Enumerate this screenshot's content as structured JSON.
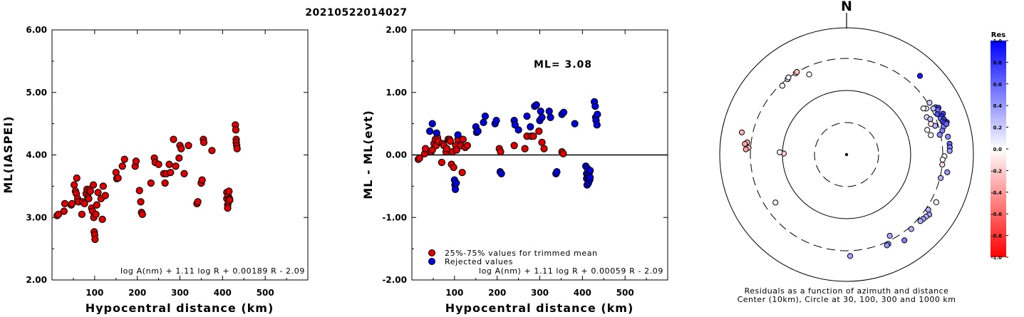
{
  "figure": {
    "title": "20210522014027"
  },
  "chart_data": [
    {
      "type": "scatter",
      "id": "ml-vs-distance",
      "xlabel": "Hypocentral distance (km)",
      "ylabel": "ML(IASPEI)",
      "xlim": [
        0,
        600
      ],
      "ylim": [
        2.0,
        6.0
      ],
      "xticks": [
        "100",
        "200",
        "300",
        "400",
        "500"
      ],
      "yticks": [
        "2.00",
        "3.00",
        "4.00",
        "5.00",
        "6.00"
      ],
      "formula": "log A(nm) + 1.11 log R + 0.00189 R - 2.09",
      "point_color": "#dd0000",
      "points": [
        [
          12,
          3.03
        ],
        [
          15,
          3.05
        ],
        [
          28,
          3.1
        ],
        [
          30,
          3.22
        ],
        [
          45,
          3.2
        ],
        [
          47,
          3.22
        ],
        [
          52,
          3.52
        ],
        [
          55,
          3.42
        ],
        [
          57,
          3.38
        ],
        [
          58,
          3.63
        ],
        [
          60,
          3.3
        ],
        [
          62,
          3.25
        ],
        [
          70,
          3.05
        ],
        [
          72,
          3.25
        ],
        [
          76,
          3.22
        ],
        [
          80,
          3.38
        ],
        [
          82,
          3.45
        ],
        [
          84,
          3.33
        ],
        [
          86,
          3.3
        ],
        [
          88,
          3.45
        ],
        [
          90,
          3.42
        ],
        [
          93,
          3.15
        ],
        [
          95,
          3.1
        ],
        [
          97,
          3.52
        ],
        [
          98,
          3.0
        ],
        [
          99,
          2.77
        ],
        [
          100,
          2.72
        ],
        [
          101,
          2.65
        ],
        [
          103,
          3.05
        ],
        [
          105,
          3.2
        ],
        [
          108,
          3.4
        ],
        [
          115,
          3.3
        ],
        [
          118,
          2.97
        ],
        [
          120,
          3.5
        ],
        [
          125,
          3.35
        ],
        [
          150,
          3.72
        ],
        [
          152,
          3.62
        ],
        [
          155,
          3.63
        ],
        [
          165,
          3.82
        ],
        [
          170,
          3.93
        ],
        [
          195,
          3.82
        ],
        [
          197,
          3.9
        ],
        [
          205,
          3.43
        ],
        [
          208,
          3.25
        ],
        [
          210,
          3.08
        ],
        [
          212,
          3.05
        ],
        [
          232,
          3.55
        ],
        [
          240,
          3.95
        ],
        [
          242,
          3.88
        ],
        [
          250,
          3.85
        ],
        [
          262,
          3.7
        ],
        [
          265,
          3.55
        ],
        [
          268,
          3.7
        ],
        [
          275,
          3.85
        ],
        [
          278,
          3.72
        ],
        [
          285,
          4.25
        ],
        [
          290,
          3.82
        ],
        [
          298,
          3.95
        ],
        [
          300,
          4.15
        ],
        [
          303,
          4.1
        ],
        [
          310,
          3.7
        ],
        [
          320,
          4.15
        ],
        [
          340,
          3.22
        ],
        [
          342,
          3.25
        ],
        [
          350,
          3.55
        ],
        [
          352,
          3.6
        ],
        [
          355,
          4.25
        ],
        [
          356,
          4.2
        ],
        [
          375,
          4.07
        ],
        [
          410,
          3.4
        ],
        [
          410,
          3.3
        ],
        [
          412,
          3.2
        ],
        [
          412,
          3.15
        ],
        [
          413,
          3.35
        ],
        [
          414,
          3.25
        ],
        [
          415,
          3.42
        ],
        [
          416,
          3.3
        ],
        [
          417,
          3.28
        ],
        [
          430,
          4.48
        ],
        [
          431,
          4.4
        ],
        [
          432,
          4.25
        ],
        [
          432,
          4.2
        ],
        [
          433,
          4.15
        ],
        [
          434,
          4.1
        ]
      ]
    },
    {
      "type": "scatter",
      "id": "residual-vs-distance",
      "xlabel": "Hypocentral distance (km)",
      "ylabel": "ML - ML(evt)",
      "xlim": [
        0,
        600
      ],
      "ylim": [
        -2.0,
        2.0
      ],
      "xticks": [
        "100",
        "200",
        "300",
        "400",
        "500"
      ],
      "yticks": [
        "-2.00",
        "-1.00",
        "0.00",
        "1.00",
        "2.00"
      ],
      "annotation": "ML= 3.08",
      "formula": "log A(nm) + 1.11 log R + 0.00059 R - 2.09",
      "reference_line": 0.0,
      "legend": [
        {
          "label": "25%-75% values for trimmed mean",
          "color": "#dd0000"
        },
        {
          "label": "Rejected values",
          "color": "#0000dd"
        }
      ],
      "series": [
        {
          "name": "25%-75% values for trimmed mean",
          "color": "#dd0000",
          "points": [
            [
              15,
              -0.07
            ],
            [
              18,
              -0.05
            ],
            [
              30,
              0.02
            ],
            [
              32,
              0.1
            ],
            [
              45,
              0.05
            ],
            [
              48,
              0.08
            ],
            [
              52,
              0.18
            ],
            [
              55,
              0.25
            ],
            [
              57,
              0.15
            ],
            [
              60,
              0.28
            ],
            [
              62,
              0.22
            ],
            [
              70,
              -0.12
            ],
            [
              72,
              0.18
            ],
            [
              75,
              0.15
            ],
            [
              80,
              0.05
            ],
            [
              82,
              0.1
            ],
            [
              85,
              0.25
            ],
            [
              88,
              0.25
            ],
            [
              90,
              0.22
            ],
            [
              93,
              -0.15
            ],
            [
              95,
              0.05
            ],
            [
              98,
              -0.2
            ],
            [
              103,
              0.15
            ],
            [
              105,
              0.08
            ],
            [
              108,
              0.25
            ],
            [
              115,
              0.15
            ],
            [
              118,
              -0.28
            ],
            [
              120,
              0.25
            ],
            [
              125,
              0.12
            ],
            [
              130,
              0.15
            ],
            [
              205,
              0.1
            ],
            [
              208,
              0.05
            ],
            [
              240,
              0.15
            ],
            [
              265,
              0.1
            ],
            [
              270,
              0.3
            ],
            [
              280,
              0.3
            ],
            [
              285,
              0.3
            ],
            [
              298,
              0.38
            ],
            [
              305,
              0.2
            ],
            [
              310,
              0.1
            ],
            [
              352,
              0.05
            ],
            [
              355,
              0.02
            ]
          ]
        },
        {
          "name": "Rejected values",
          "color": "#0000dd",
          "points": [
            [
              42,
              0.38
            ],
            [
              48,
              0.5
            ],
            [
              58,
              0.35
            ],
            [
              100,
              -0.4
            ],
            [
              101,
              -0.48
            ],
            [
              102,
              -0.55
            ],
            [
              104,
              -0.45
            ],
            [
              108,
              0.32
            ],
            [
              150,
              0.45
            ],
            [
              152,
              0.36
            ],
            [
              155,
              0.38
            ],
            [
              168,
              0.52
            ],
            [
              172,
              0.62
            ],
            [
              195,
              0.5
            ],
            [
              198,
              0.55
            ],
            [
              207,
              -0.27
            ],
            [
              210,
              -0.3
            ],
            [
              240,
              0.55
            ],
            [
              242,
              0.48
            ],
            [
              250,
              0.4
            ],
            [
              270,
              0.62
            ],
            [
              278,
              0.45
            ],
            [
              288,
              0.78
            ],
            [
              292,
              0.8
            ],
            [
              300,
              0.55
            ],
            [
              302,
              0.7
            ],
            [
              305,
              0.6
            ],
            [
              322,
              0.7
            ],
            [
              325,
              0.6
            ],
            [
              338,
              -0.3
            ],
            [
              340,
              -0.27
            ],
            [
              352,
              0.65
            ],
            [
              356,
              0.68
            ],
            [
              382,
              0.5
            ],
            [
              408,
              -0.18
            ],
            [
              410,
              -0.3
            ],
            [
              410,
              -0.38
            ],
            [
              411,
              -0.48
            ],
            [
              412,
              -0.22
            ],
            [
              413,
              -0.35
            ],
            [
              414,
              -0.45
            ],
            [
              415,
              -0.32
            ],
            [
              416,
              -0.28
            ],
            [
              417,
              -0.4
            ],
            [
              418,
              -0.25
            ],
            [
              418,
              -0.36
            ],
            [
              428,
              0.85
            ],
            [
              430,
              0.78
            ],
            [
              431,
              0.6
            ],
            [
              432,
              0.55
            ],
            [
              434,
              0.48
            ],
            [
              435,
              0.65
            ]
          ]
        }
      ]
    },
    {
      "type": "scatter",
      "id": "residual-polar",
      "north_label": "N",
      "caption_1": "Residuals as a function of azimuth and distance",
      "caption_2": "Center (10km), Circle at 30, 100, 300 and 1000 km",
      "rings_km": [
        30,
        100,
        300,
        1000
      ],
      "colorbar": {
        "title": "Res",
        "ticks": [
          "1.0",
          "0.8",
          "0.6",
          "0.4",
          "0.2",
          "0.0",
          "-0.2",
          "-0.4",
          "-0.6",
          "-0.8",
          "-1.0"
        ],
        "min": -1.0,
        "max": 1.0,
        "low_color": "#ff0000",
        "mid_color": "#ffffff",
        "high_color": "#0000ff"
      },
      "points": [
        {
          "az": 322,
          "dist": 295,
          "res": 0.05
        },
        {
          "az": 323,
          "dist": 305,
          "res": 0.05
        },
        {
          "az": 328,
          "dist": 297,
          "res": -0.2
        },
        {
          "az": 329,
          "dist": 303,
          "res": -0.25
        },
        {
          "az": 317,
          "dist": 280,
          "res": 0.0
        },
        {
          "az": 335,
          "dist": 230,
          "res": 0.0
        },
        {
          "az": 282,
          "dist": 460,
          "res": -0.3
        },
        {
          "az": 277,
          "dist": 350,
          "res": -0.3
        },
        {
          "az": 276,
          "dist": 380,
          "res": -0.35
        },
        {
          "az": 274,
          "dist": 325,
          "res": -0.3
        },
        {
          "az": 273,
          "dist": 360,
          "res": -0.35
        },
        {
          "az": 271,
          "dist": 95,
          "res": -0.2
        },
        {
          "az": 272,
          "dist": 110,
          "res": 0.0
        },
        {
          "az": 43,
          "dist": 470,
          "res": 0.9
        },
        {
          "az": 62,
          "dist": 360,
          "res": 0.55
        },
        {
          "az": 63,
          "dist": 395,
          "res": 0.75
        },
        {
          "az": 64,
          "dist": 370,
          "res": 0.6
        },
        {
          "az": 66,
          "dist": 340,
          "res": 0.7
        },
        {
          "az": 67,
          "dist": 420,
          "res": 0.75
        },
        {
          "az": 68,
          "dist": 385,
          "res": 0.8
        },
        {
          "az": 69,
          "dist": 360,
          "res": 0.55
        },
        {
          "az": 70,
          "dist": 400,
          "res": 0.7
        },
        {
          "az": 71,
          "dist": 370,
          "res": 0.65
        },
        {
          "az": 72,
          "dist": 430,
          "res": 0.8
        },
        {
          "az": 72,
          "dist": 390,
          "res": 0.7
        },
        {
          "az": 74,
          "dist": 360,
          "res": 0.5
        },
        {
          "az": 73,
          "dist": 415,
          "res": 0.6
        },
        {
          "az": 76,
          "dist": 330,
          "res": 0.5
        },
        {
          "az": 78,
          "dist": 290,
          "res": 0.45
        },
        {
          "az": 80,
          "dist": 390,
          "res": 0.45
        },
        {
          "az": 84,
          "dist": 400,
          "res": 0.6
        },
        {
          "az": 86,
          "dist": 400,
          "res": 0.5
        },
        {
          "az": 88,
          "dist": 395,
          "res": 0.4
        },
        {
          "az": 58,
          "dist": 320,
          "res": 0.2
        },
        {
          "az": 62,
          "dist": 325,
          "res": 0.25
        },
        {
          "az": 60,
          "dist": 260,
          "res": 0.05
        },
        {
          "az": 59,
          "dist": 240,
          "res": 0.0
        },
        {
          "az": 65,
          "dist": 230,
          "res": 0.15
        },
        {
          "az": 67,
          "dist": 250,
          "res": 0.25
        },
        {
          "az": 72,
          "dist": 270,
          "res": 0.3
        },
        {
          "az": 70,
          "dist": 240,
          "res": -0.1
        },
        {
          "az": 73,
          "dist": 200,
          "res": 0.0
        },
        {
          "az": 77,
          "dist": 215,
          "res": 0.0
        },
        {
          "az": 91,
          "dist": 320,
          "res": 0.0
        },
        {
          "az": 93,
          "dist": 300,
          "res": 0.0
        },
        {
          "az": 96,
          "dist": 300,
          "res": -0.15
        },
        {
          "az": 104,
          "dist": 310,
          "res": 0.3
        },
        {
          "az": 100,
          "dist": 380,
          "res": 0.4
        },
        {
          "az": 118,
          "dist": 370,
          "res": 0.0
        },
        {
          "az": 124,
          "dist": 330,
          "res": 0.3
        },
        {
          "az": 126,
          "dist": 380,
          "res": 0.35
        },
        {
          "az": 128,
          "dist": 360,
          "res": 0.3
        },
        {
          "az": 130,
          "dist": 350,
          "res": 0.35
        },
        {
          "az": 132,
          "dist": 340,
          "res": 0.3
        },
        {
          "az": 139,
          "dist": 330,
          "res": 0.3
        },
        {
          "az": 146,
          "dist": 400,
          "res": 0.5
        },
        {
          "az": 152,
          "dist": 260,
          "res": 0.35
        },
        {
          "az": 155,
          "dist": 330,
          "res": 0.45
        },
        {
          "az": 156,
          "dist": 340,
          "res": 0.4
        },
        {
          "az": 178,
          "dist": 370,
          "res": 0.35
        },
        {
          "az": 236,
          "dist": 210,
          "res": 0.0
        }
      ]
    }
  ]
}
